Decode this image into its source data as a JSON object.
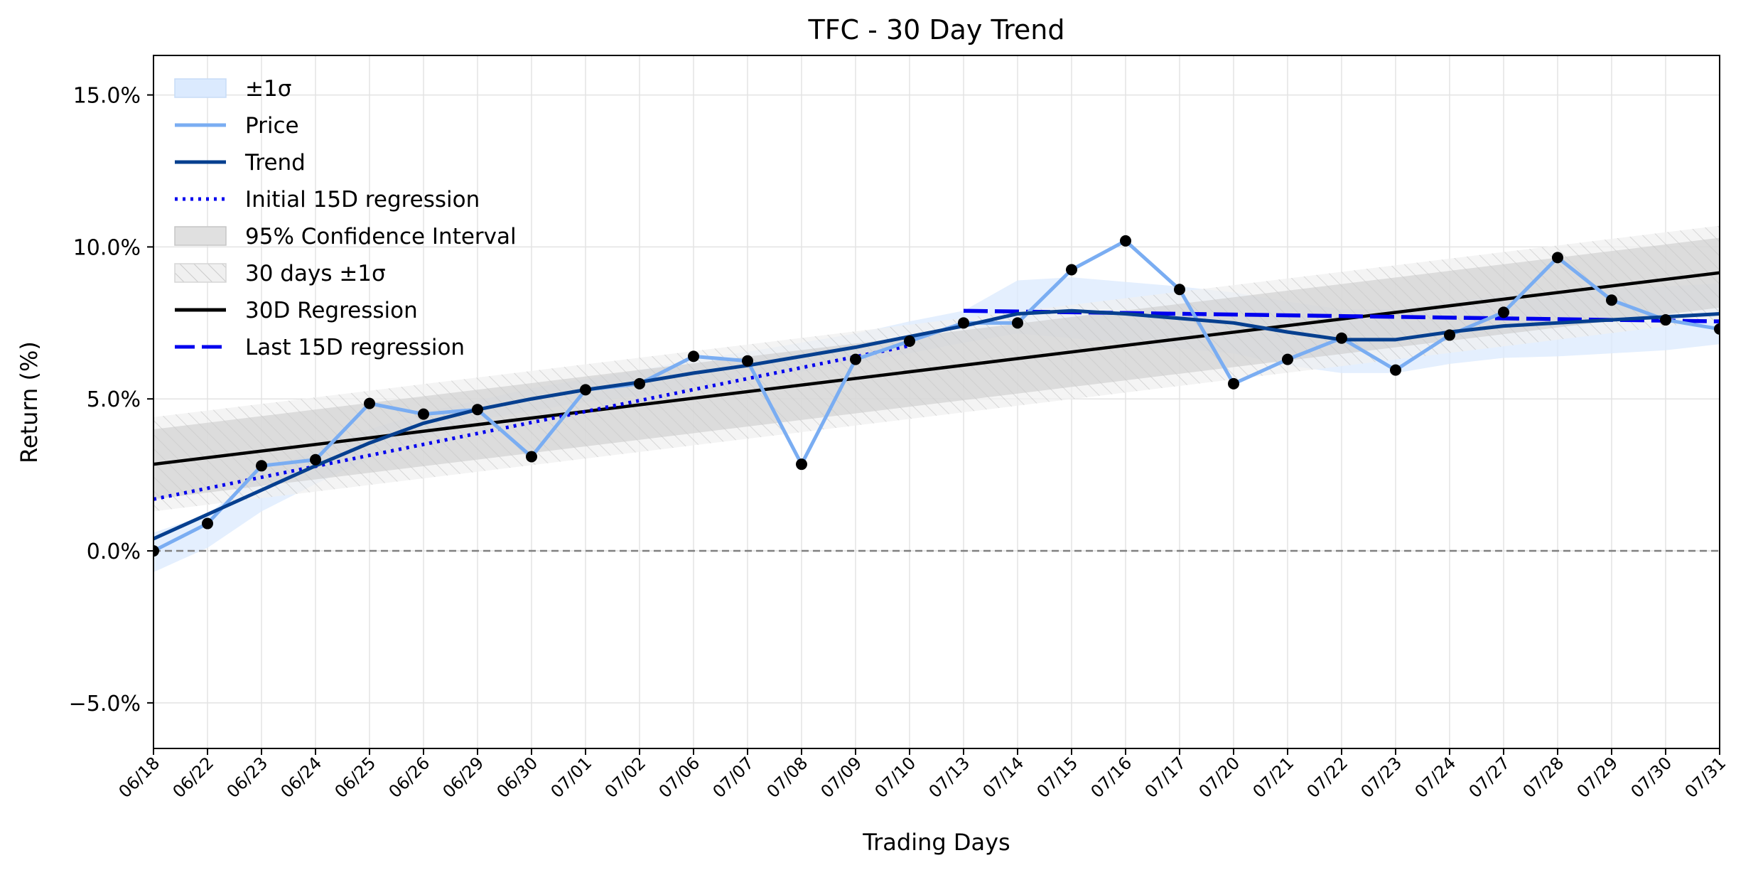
{
  "chart_data": {
    "type": "line",
    "title": "TFC - 30 Day Trend",
    "xlabel": "Trading Days",
    "ylabel": "Return (%)",
    "ylim": [
      -6.5,
      16.3
    ],
    "yticks": [
      -5,
      0,
      5,
      10,
      15
    ],
    "ytick_labels": [
      "−5.0%",
      "0.0%",
      "5.0%",
      "10.0%",
      "15.0%"
    ],
    "grid": true,
    "legend_position": "upper-left",
    "categories": [
      "06/18",
      "06/22",
      "06/23",
      "06/24",
      "06/25",
      "06/26",
      "06/29",
      "06/30",
      "07/01",
      "07/02",
      "07/06",
      "07/07",
      "07/08",
      "07/09",
      "07/10",
      "07/13",
      "07/14",
      "07/15",
      "07/16",
      "07/17",
      "07/20",
      "07/21",
      "07/22",
      "07/23",
      "07/24",
      "07/27",
      "07/28",
      "07/29",
      "07/30",
      "07/31"
    ],
    "zero_line": 0,
    "legend": [
      "±1σ",
      "Price",
      "Trend",
      "Initial 15D regression",
      "95% Confidence Interval",
      "30 days ±1σ",
      "30D Regression",
      "Last 15D regression"
    ],
    "series": [
      {
        "name": "Price",
        "color": "#7aadf2",
        "markers": "#000000",
        "values": [
          0.0,
          0.9,
          2.8,
          3.0,
          4.85,
          4.5,
          4.65,
          3.1,
          5.3,
          5.5,
          6.4,
          6.25,
          2.85,
          6.3,
          6.9,
          7.5,
          7.5,
          9.25,
          10.2,
          8.6,
          5.5,
          6.3,
          7.0,
          5.95,
          7.1,
          7.85,
          9.65,
          8.25,
          7.6,
          7.3
        ]
      },
      {
        "name": "Trend",
        "color": "#063f8f",
        "values": [
          0.4,
          1.2,
          2.0,
          2.8,
          3.55,
          4.2,
          4.65,
          5.0,
          5.3,
          5.55,
          5.85,
          6.1,
          6.4,
          6.7,
          7.05,
          7.4,
          7.8,
          7.9,
          7.8,
          7.65,
          7.5,
          7.2,
          6.95,
          6.95,
          7.2,
          7.4,
          7.5,
          7.6,
          7.7,
          7.8
        ]
      },
      {
        "name": "Initial 15D regression",
        "color": "#0000ee",
        "style": "dotted",
        "x_range": [
          0,
          14
        ],
        "y_range": [
          1.7,
          6.75
        ]
      },
      {
        "name": "Last 15D regression",
        "color": "#0000ee",
        "style": "dashed",
        "x_range": [
          15,
          29
        ],
        "y_range": [
          7.9,
          7.55
        ]
      },
      {
        "name": "30D Regression",
        "color": "#000000",
        "style": "solid",
        "x_range": [
          0,
          29
        ],
        "y_range": [
          2.85,
          9.15
        ]
      }
    ],
    "bands": [
      {
        "name": "±1σ",
        "color": "#dbeafe",
        "upper": [
          0.6,
          1.2,
          2.6,
          3.3,
          4.0,
          4.55,
          4.95,
          5.35,
          5.65,
          5.95,
          6.3,
          6.55,
          6.85,
          7.15,
          7.55,
          7.9,
          8.9,
          9.0,
          8.85,
          8.7,
          8.5,
          8.2,
          7.95,
          7.95,
          8.2,
          8.4,
          8.5,
          8.65,
          8.7,
          8.8
        ],
        "lower": [
          -0.7,
          0.1,
          1.3,
          2.2,
          3.05,
          3.75,
          4.3,
          4.6,
          4.9,
          5.1,
          5.35,
          5.6,
          5.9,
          6.2,
          6.5,
          6.85,
          7.15,
          7.0,
          6.8,
          6.65,
          6.5,
          6.1,
          5.85,
          5.85,
          6.15,
          6.35,
          6.4,
          6.5,
          6.6,
          6.8
        ]
      },
      {
        "name": "30 days ±1σ",
        "color": "#e6e6e6",
        "hatch": true,
        "x_range": [
          0,
          29
        ],
        "upper_range": [
          4.4,
          10.7
        ],
        "lower_range": [
          1.3,
          7.6
        ]
      },
      {
        "name": "95% Confidence Interval",
        "color": "#c8c8c8",
        "x_range": [
          0,
          29
        ],
        "upper_range": [
          4.0,
          10.3
        ],
        "lower_range": [
          1.7,
          8.0
        ]
      }
    ]
  }
}
